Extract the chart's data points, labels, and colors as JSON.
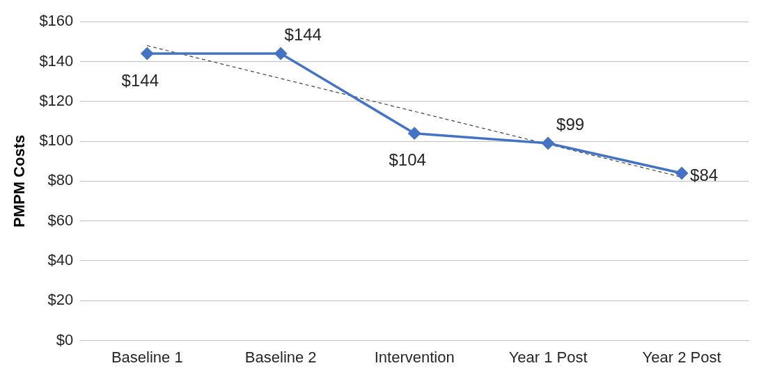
{
  "chart_data": {
    "type": "line",
    "ylabel": "PMPM Costs",
    "categories": [
      "Baseline 1",
      "Baseline 2",
      "Intervention",
      "Year 1 Post",
      "Year 2 Post"
    ],
    "series": [
      {
        "color": "#4472c4",
        "values": [
          144,
          144,
          104,
          99,
          84
        ],
        "value_labels": [
          "$144",
          "$144",
          "$104",
          "$99",
          "$84"
        ],
        "marker": "diamond",
        "line_style": "solid"
      },
      {
        "color": "#404040",
        "values": [
          148,
          131.5,
          115,
          98.5,
          82
        ],
        "marker": "none",
        "line_style": "dashed"
      }
    ],
    "ylim": [
      0,
      160
    ],
    "yticks": [
      {
        "value": 0,
        "label": "$0"
      },
      {
        "value": 20,
        "label": "$20"
      },
      {
        "value": 40,
        "label": "$40"
      },
      {
        "value": 60,
        "label": "$60"
      },
      {
        "value": 80,
        "label": "$80"
      },
      {
        "value": 100,
        "label": "$100"
      },
      {
        "value": 120,
        "label": "$120"
      },
      {
        "value": 140,
        "label": "$140"
      },
      {
        "value": 160,
        "label": "$160"
      }
    ],
    "grid": "y",
    "legend": false
  }
}
